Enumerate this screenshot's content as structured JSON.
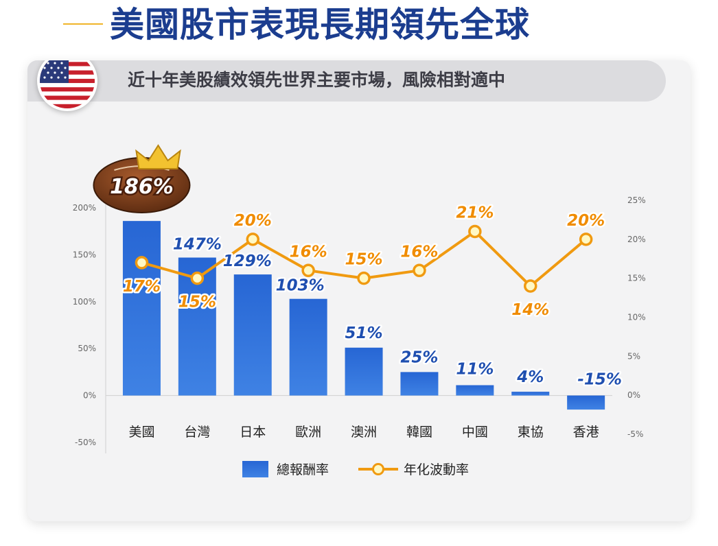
{
  "header": {
    "title": "美國股市表現長期領先全球",
    "subtitle": "近十年美股績效領先世界主要市場，風險相對適中",
    "flag_icon": "us-flag-icon",
    "accent_color": "#f0b429",
    "title_color": "#1b3d8f"
  },
  "chart_data": {
    "type": "bar",
    "categories": [
      "美國",
      "台灣",
      "日本",
      "歐洲",
      "澳洲",
      "韓國",
      "中國",
      "東協",
      "香港"
    ],
    "series": [
      {
        "name": "總報酬率",
        "type": "bar",
        "axis": "left",
        "color": "#2f6fd6",
        "values": [
          186,
          147,
          129,
          103,
          51,
          25,
          11,
          4,
          -15
        ],
        "labels": [
          "186%",
          "147%",
          "129%",
          "103%",
          "51%",
          "25%",
          "11%",
          "4%",
          "-15%"
        ]
      },
      {
        "name": "年化波動率",
        "type": "line",
        "axis": "right",
        "color": "#f09a10",
        "values": [
          17,
          15,
          20,
          16,
          15,
          16,
          21,
          14,
          20
        ],
        "labels": [
          "17%",
          "15%",
          "20%",
          "16%",
          "15%",
          "16%",
          "21%",
          "14%",
          "20%"
        ]
      }
    ],
    "yleft": {
      "ticks": [
        200,
        150,
        100,
        50,
        0,
        -50
      ],
      "tick_labels": [
        "200%",
        "150%",
        "100%",
        "50%",
        "0%",
        "-50%"
      ],
      "ylim": [
        -50,
        200
      ]
    },
    "yright": {
      "ticks": [
        25,
        20,
        15,
        10,
        5,
        0,
        -5
      ],
      "tick_labels": [
        "25%",
        "20%",
        "15%",
        "10%",
        "5%",
        "0%",
        "-5%"
      ],
      "ylim": [
        -5,
        25
      ]
    },
    "highlight": {
      "category": "美國",
      "label": "186%",
      "icon": "crown-football-badge-icon"
    },
    "legend": {
      "placement": "bottom-center",
      "items": [
        "總報酬率",
        "年化波動率"
      ]
    },
    "grid": false
  }
}
